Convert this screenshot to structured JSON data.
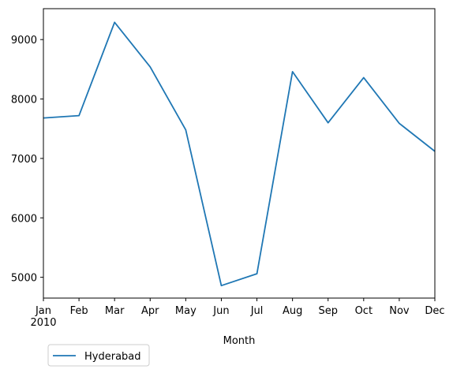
{
  "chart_data": {
    "type": "line",
    "title": "",
    "xlabel": "Month",
    "ylabel": "",
    "x": [
      "Jan",
      "Feb",
      "Mar",
      "Apr",
      "May",
      "Jun",
      "Jul",
      "Aug",
      "Sep",
      "Oct",
      "Nov",
      "Dec"
    ],
    "x_year_label": "2010",
    "series": [
      {
        "name": "Hyderabad",
        "color": "#1f77b4",
        "values": [
          7680,
          7720,
          9290,
          8540,
          7480,
          4860,
          5060,
          8460,
          7600,
          8360,
          7590,
          7120
        ]
      }
    ],
    "ylim": [
      4650,
      9520
    ],
    "yticks": [
      5000,
      6000,
      7000,
      8000,
      9000
    ],
    "grid": false,
    "legend": "bottom-left, outside plot"
  }
}
